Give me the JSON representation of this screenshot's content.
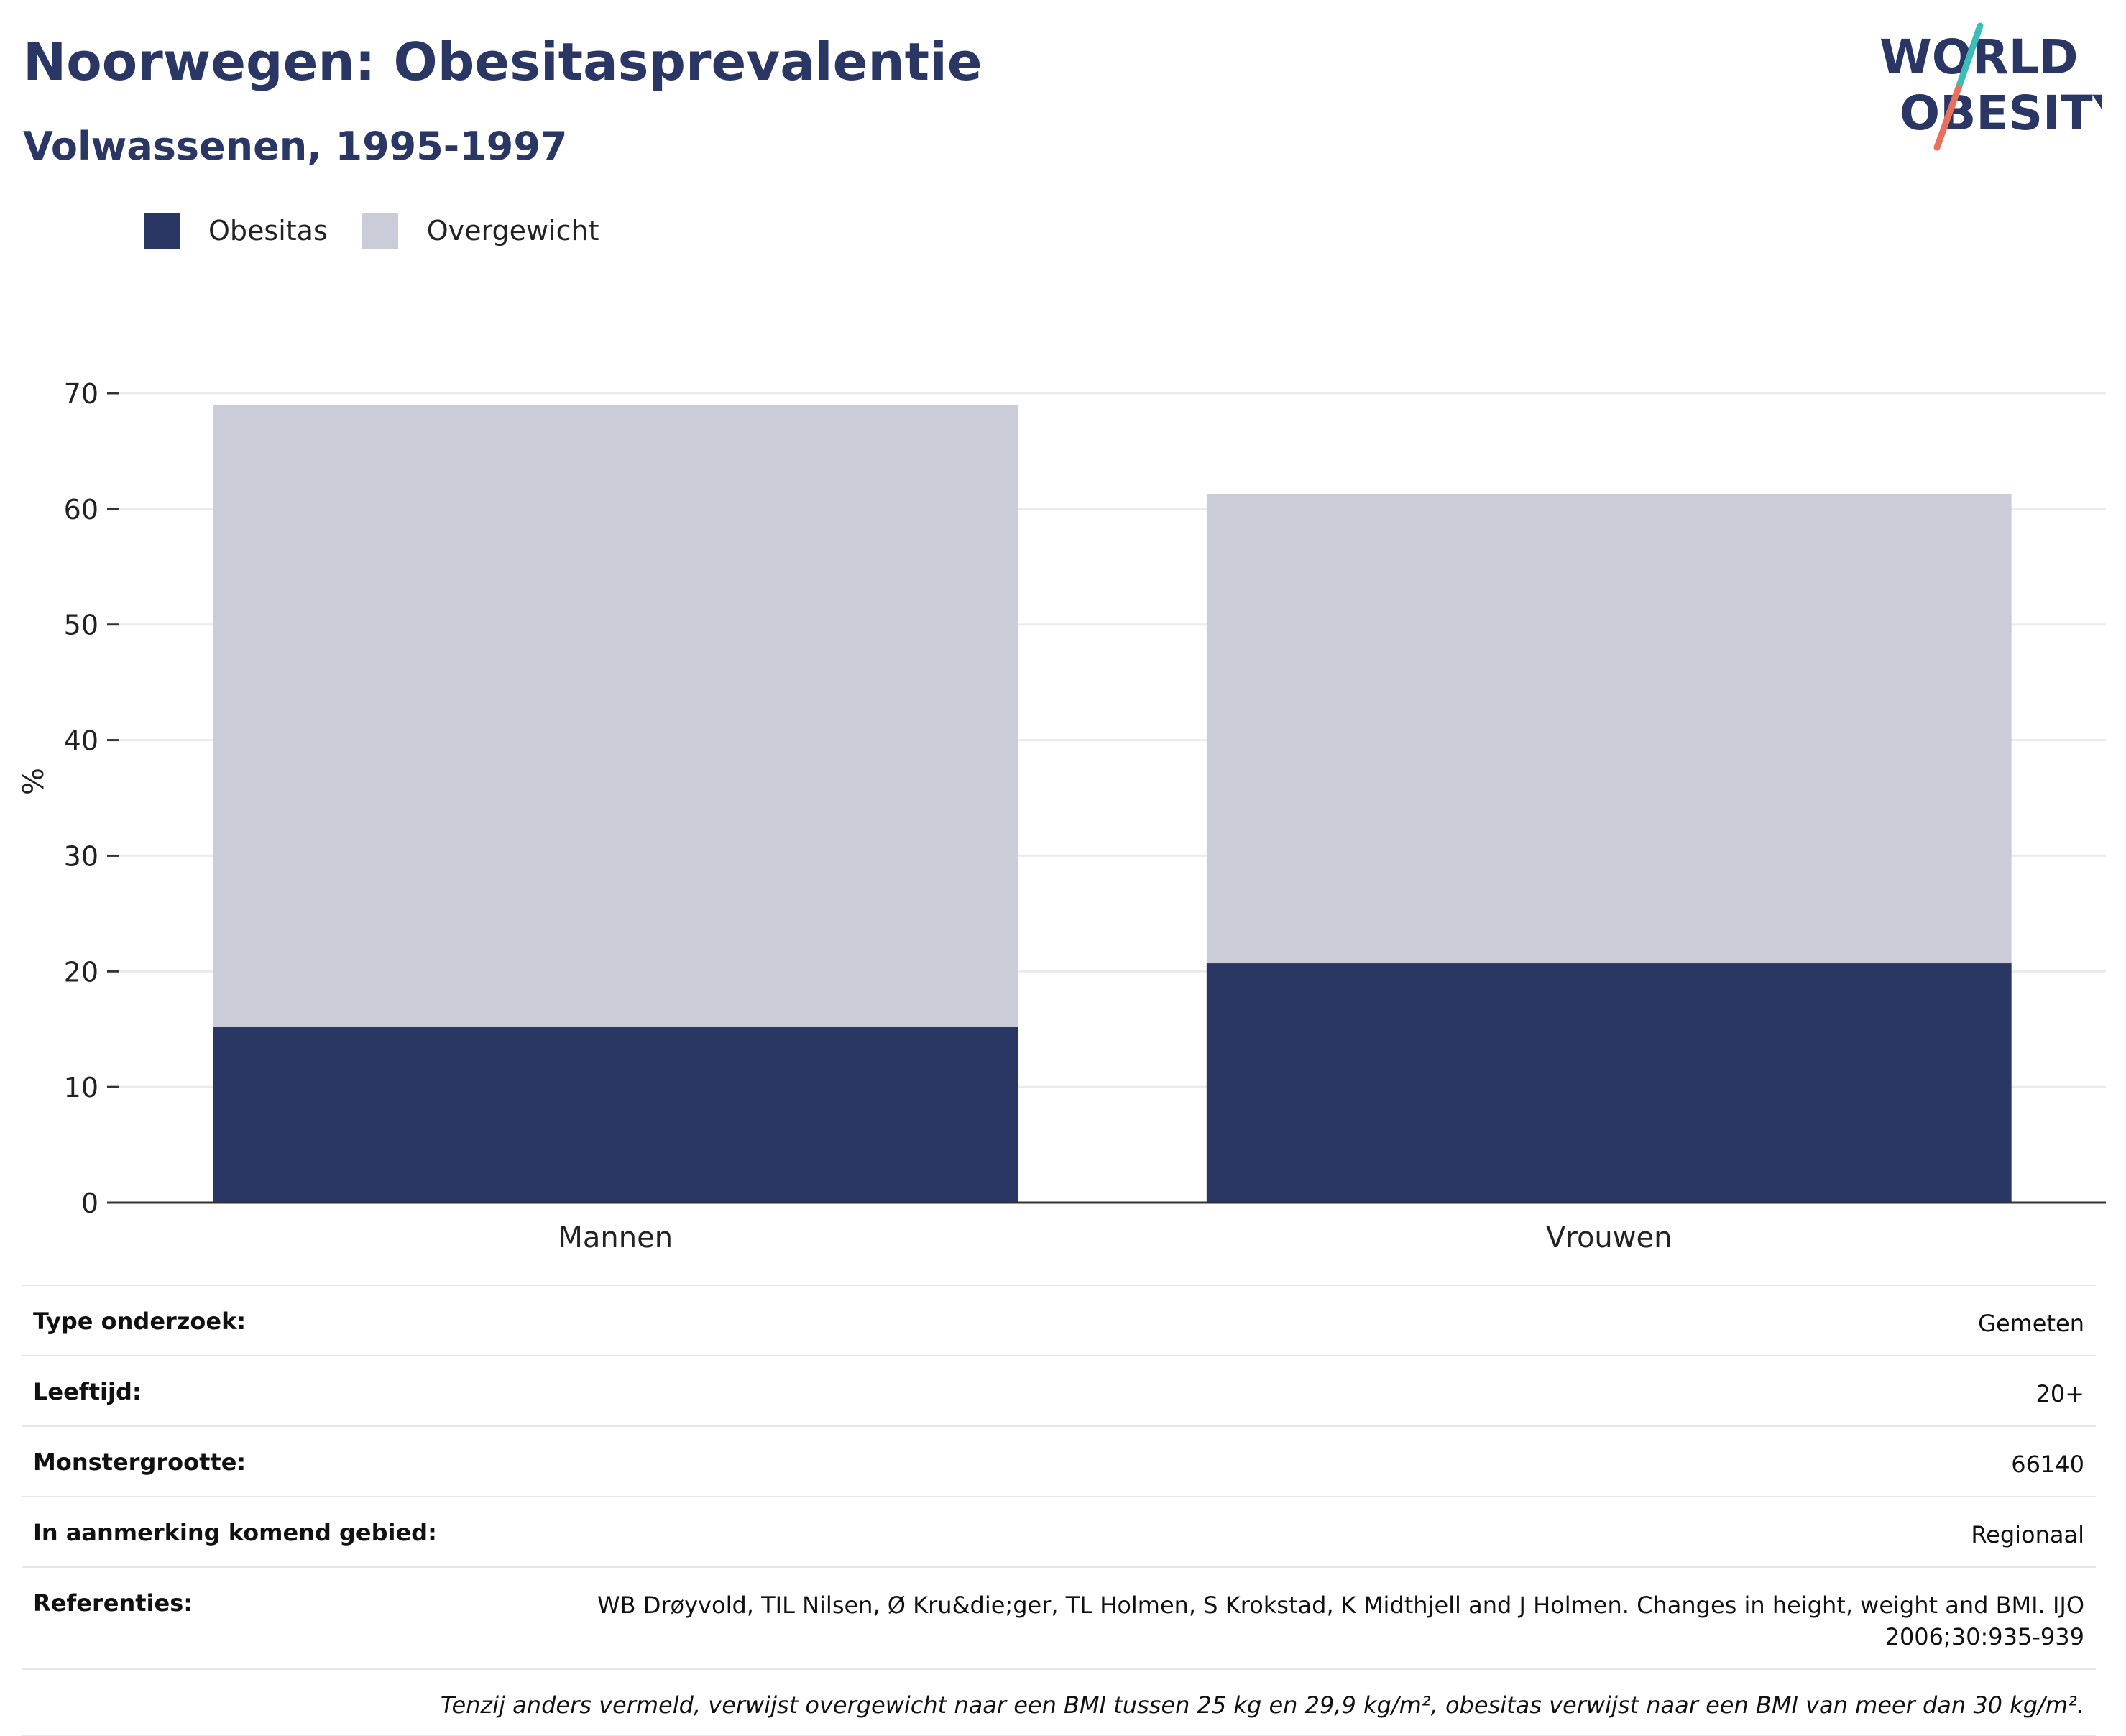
{
  "header": {
    "title": "Noorwegen: Obesitasprevalentie",
    "subtitle": "Volwassenen, 1995-1997"
  },
  "logo": {
    "line1": "WORLD",
    "line2": "OBESITY",
    "colors": {
      "text": "#2a3663",
      "slash_top": "#3dbdb8",
      "slash_bottom": "#e8705e"
    }
  },
  "colors": {
    "obesitas": "#2a3663",
    "overgewicht": "#cacdd8",
    "axis": "#333333",
    "grid": "#ebebeb"
  },
  "chart_data": {
    "type": "bar",
    "stacked": true,
    "categories": [
      "Mannen",
      "Vrouwen"
    ],
    "series": [
      {
        "name": "Obesitas",
        "values": [
          15.2,
          20.7
        ]
      },
      {
        "name": "Overgewicht",
        "values": [
          53.8,
          40.6
        ]
      }
    ],
    "ylabel": "%",
    "ylim": [
      0,
      70
    ],
    "yticks": [
      0,
      10,
      20,
      30,
      40,
      50,
      60,
      70
    ],
    "grid": true,
    "legend": "top-left"
  },
  "info": {
    "rows": [
      {
        "label": "Type onderzoek:",
        "value": "Gemeten"
      },
      {
        "label": "Leeftijd:",
        "value": "20+"
      },
      {
        "label": "Monstergrootte:",
        "value": "66140"
      },
      {
        "label": "In aanmerking komend gebied:",
        "value": "Regionaal"
      },
      {
        "label": "Referenties:",
        "value": "WB Drøyvold, TIL Nilsen, Ø Kru&die;ger, TL Holmen, S Krokstad, K Midthjell and J Holmen. Changes in height, weight and BMI. IJO 2006;30:935-939"
      }
    ],
    "note": "Tenzij anders vermeld, verwijst overgewicht naar een BMI tussen 25 kg en 29,9 kg/m², obesitas verwijst naar een BMI van meer dan 30 kg/m²."
  }
}
